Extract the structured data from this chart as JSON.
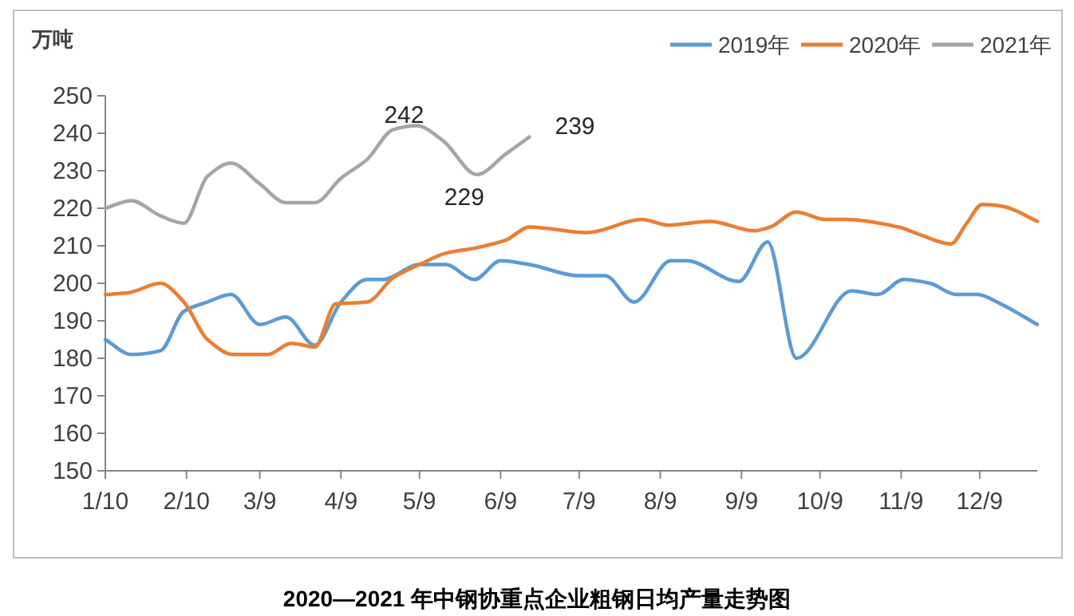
{
  "chart_data": {
    "type": "line",
    "title": "2020—2021 年中钢协重点企业粗钢日均产量走势图",
    "ylabel": "万吨",
    "series": [
      {
        "name": "2019年",
        "color": "#5b9bd5",
        "x": [
          "--01-10",
          "--01-20",
          "--01-31",
          "--02-09",
          "--02-18",
          "--02-27",
          "--03-09",
          "--03-19",
          "--03-30",
          "--04-09",
          "--04-19",
          "--04-25",
          "--05-09",
          "--05-19",
          "--05-30",
          "--06-09",
          "--06-20",
          "--07-09",
          "--07-19",
          "--07-30",
          "--08-13",
          "--08-19",
          "--09-08",
          "--09-19",
          "--09-30",
          "--10-21",
          "--10-31",
          "--11-10",
          "--11-20",
          "--11-30",
          "--12-08",
          "--12-17",
          "--12-31"
        ],
        "values": [
          185,
          181,
          182,
          192.5,
          195,
          197,
          189,
          191,
          183.5,
          195,
          201,
          201,
          205,
          205,
          201,
          206,
          205,
          202,
          202,
          195,
          206,
          206,
          200.5,
          211,
          180,
          198,
          197,
          201,
          200,
          197,
          197,
          194.5,
          189
        ]
      },
      {
        "name": "2020年",
        "color": "#ed7d31",
        "x": [
          "--01-10",
          "--01-19",
          "--01-31",
          "--02-09",
          "--02-18",
          "--02-28",
          "--03-12",
          "--03-21",
          "--03-30",
          "--04-07",
          "--04-19",
          "--04-29",
          "--05-09",
          "--05-19",
          "--05-31",
          "--06-11",
          "--06-20",
          "--07-12",
          "--08-02",
          "--08-12",
          "--08-28",
          "--09-14",
          "--09-20",
          "--09-30",
          "--10-11",
          "--10-19",
          "--11-08",
          "--11-16",
          "--11-28",
          "--12-04",
          "--12-10",
          "--12-18",
          "--12-31"
        ],
        "values": [
          197,
          197.5,
          200,
          195,
          185,
          181,
          181,
          184,
          183,
          194.5,
          195,
          201.5,
          205,
          208,
          209.5,
          211.5,
          215,
          213.5,
          217,
          215.5,
          216.5,
          214,
          215,
          219,
          217,
          217,
          215,
          213,
          210.5,
          216,
          221,
          220.5,
          216.5
        ]
      },
      {
        "name": "2021年",
        "color": "#a5a5a5",
        "x": [
          "--01-10",
          "--01-20",
          "--01-31",
          "--02-09",
          "--02-18",
          "--02-27",
          "--03-09",
          "--03-19",
          "--03-30",
          "--04-09",
          "--04-19",
          "--04-29",
          "--05-08",
          "--05-18",
          "--05-31",
          "--06-11",
          "--06-20"
        ],
        "values": [
          220,
          222,
          218,
          216,
          228.5,
          232,
          226.5,
          221.5,
          221.5,
          228,
          233,
          241,
          242,
          238,
          229,
          234.5,
          239
        ]
      }
    ],
    "xlim": [
      "--01-10",
      "--12-31"
    ],
    "xticks": [
      {
        "value": "--01-10",
        "label": "1/10"
      },
      {
        "value": "--02-10",
        "label": "2/10"
      },
      {
        "value": "--03-09",
        "label": "3/9"
      },
      {
        "value": "--04-09",
        "label": "4/9"
      },
      {
        "value": "--05-09",
        "label": "5/9"
      },
      {
        "value": "--06-09",
        "label": "6/9"
      },
      {
        "value": "--07-09",
        "label": "7/9"
      },
      {
        "value": "--08-09",
        "label": "8/9"
      },
      {
        "value": "--09-09",
        "label": "9/9"
      },
      {
        "value": "--10-09",
        "label": "10/9"
      },
      {
        "value": "--11-09",
        "label": "11/9"
      },
      {
        "value": "--12-09",
        "label": "12/9"
      }
    ],
    "ylim": [
      150,
      250
    ],
    "yticks": [
      150,
      160,
      170,
      180,
      190,
      200,
      210,
      220,
      230,
      240,
      250
    ],
    "annotations": [
      {
        "text": "242",
        "x": "--05-08",
        "y": 242
      },
      {
        "text": "229",
        "x": "--05-31",
        "y": 229
      },
      {
        "text": "239",
        "x": "--06-20",
        "y": 239
      }
    ],
    "legend": "top right",
    "grid": false,
    "marker": "none",
    "line_style": "solid"
  }
}
